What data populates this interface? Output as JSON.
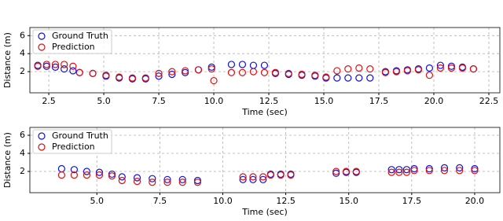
{
  "chart_data": [
    {
      "type": "scatter",
      "xlabel": "Time (sec)",
      "ylabel": "Distance (m)",
      "xlim": [
        1.64,
        23.0
      ],
      "ylim": [
        -0.35,
        6.9
      ],
      "xticks": [
        {
          "value": 2.5,
          "label": "2.5"
        },
        {
          "value": 5,
          "label": "5.0"
        },
        {
          "value": 7.5,
          "label": "7.5"
        },
        {
          "value": 10,
          "label": "10.0"
        },
        {
          "value": 12.5,
          "label": "12.5"
        },
        {
          "value": 15,
          "label": "15.0"
        },
        {
          "value": 17.5,
          "label": "17.5"
        },
        {
          "value": 20,
          "label": "20.0"
        },
        {
          "value": 22.5,
          "label": "22.5"
        }
      ],
      "yticks": [
        2,
        4,
        6
      ],
      "grid": true,
      "legend": "upper-left",
      "series": [
        {
          "name": "Ground Truth",
          "color": "#1010e0",
          "x": [
            2.0,
            2.4,
            2.8,
            3.2,
            3.6,
            3.9,
            4.5,
            5.1,
            5.7,
            6.3,
            6.9,
            7.5,
            8.1,
            8.7,
            9.3,
            9.9,
            10.8,
            11.3,
            11.8,
            12.3,
            12.8,
            13.4,
            14.0,
            14.6,
            15.1,
            15.6,
            16.1,
            16.6,
            17.1,
            17.8,
            18.3,
            18.8,
            19.3,
            19.8,
            20.3,
            20.8,
            21.3,
            21.8
          ],
          "values": [
            2.7,
            2.6,
            2.5,
            2.3,
            2.1,
            1.9,
            1.8,
            1.5,
            1.3,
            1.2,
            1.2,
            1.5,
            1.7,
            1.9,
            2.2,
            2.5,
            2.8,
            2.8,
            2.7,
            2.7,
            1.8,
            1.7,
            1.6,
            1.5,
            1.3,
            1.3,
            1.3,
            1.3,
            1.3,
            2.0,
            2.1,
            2.2,
            2.3,
            2.4,
            2.7,
            2.6,
            2.5,
            2.3
          ]
        },
        {
          "name": "Prediction",
          "color": "#e01010",
          "x": [
            2.0,
            2.4,
            2.8,
            3.2,
            3.6,
            3.9,
            4.5,
            5.1,
            5.7,
            6.3,
            6.9,
            7.5,
            8.1,
            8.7,
            9.3,
            9.9,
            10.0,
            10.8,
            11.3,
            11.8,
            12.3,
            12.8,
            13.4,
            14.0,
            14.6,
            15.1,
            15.6,
            16.1,
            16.6,
            17.1,
            17.8,
            18.3,
            18.8,
            19.3,
            19.8,
            20.3,
            20.8,
            21.3,
            21.8
          ],
          "values": [
            2.6,
            2.8,
            2.8,
            2.8,
            2.6,
            1.9,
            1.8,
            1.6,
            1.4,
            1.3,
            1.3,
            1.8,
            2.0,
            2.1,
            2.2,
            2.3,
            1.0,
            1.9,
            1.9,
            2.0,
            1.9,
            1.9,
            1.8,
            1.7,
            1.6,
            1.4,
            2.1,
            2.3,
            2.4,
            2.3,
            1.9,
            2.0,
            2.1,
            2.2,
            1.6,
            2.4,
            2.4,
            2.4,
            2.3
          ]
        }
      ]
    },
    {
      "type": "scatter",
      "xlabel": "Time (sec)",
      "ylabel": "Distance (m)",
      "xlim": [
        2.34,
        21.0
      ],
      "ylim": [
        -0.35,
        6.87
      ],
      "xticks": [
        {
          "value": 5,
          "label": "5.0"
        },
        {
          "value": 7.5,
          "label": "7.5"
        },
        {
          "value": 10,
          "label": "10.0"
        },
        {
          "value": 12.5,
          "label": "12.5"
        },
        {
          "value": 15,
          "label": "15.0"
        },
        {
          "value": 17.5,
          "label": "17.5"
        },
        {
          "value": 20,
          "label": "20.0"
        }
      ],
      "yticks": [
        2,
        4,
        6
      ],
      "grid": true,
      "legend": "upper-left",
      "series": [
        {
          "name": "Ground Truth",
          "color": "#1010e0",
          "x": [
            3.6,
            4.1,
            4.6,
            5.1,
            5.6,
            6.0,
            6.6,
            7.2,
            7.8,
            8.4,
            9.0,
            10.8,
            11.2,
            11.6,
            11.9,
            12.3,
            12.7,
            14.5,
            14.9,
            15.3,
            16.7,
            17.0,
            17.3,
            17.6,
            18.2,
            18.8,
            19.4,
            20.0
          ],
          "values": [
            2.3,
            2.2,
            2.0,
            1.9,
            1.7,
            1.4,
            1.3,
            1.2,
            1.1,
            1.1,
            1.0,
            1.1,
            1.1,
            1.1,
            1.7,
            1.7,
            1.7,
            1.8,
            1.9,
            1.9,
            2.2,
            2.2,
            2.2,
            2.3,
            2.3,
            2.4,
            2.4,
            2.3
          ]
        },
        {
          "name": "Prediction",
          "color": "#e01010",
          "x": [
            3.6,
            4.1,
            4.6,
            5.1,
            5.6,
            6.0,
            6.6,
            7.2,
            7.8,
            8.4,
            9.0,
            10.8,
            11.2,
            11.6,
            11.9,
            12.3,
            12.7,
            14.5,
            14.9,
            15.3,
            16.7,
            17.0,
            17.3,
            17.6,
            18.2,
            18.8,
            19.4,
            20.0
          ],
          "values": [
            1.6,
            1.6,
            1.6,
            1.6,
            1.5,
            1.0,
            0.9,
            0.8,
            0.8,
            0.8,
            0.8,
            1.4,
            1.4,
            1.4,
            1.6,
            1.6,
            1.6,
            2.0,
            2.0,
            2.0,
            1.9,
            1.9,
            1.9,
            2.1,
            2.1,
            2.1,
            2.1,
            2.1
          ]
        }
      ]
    }
  ]
}
